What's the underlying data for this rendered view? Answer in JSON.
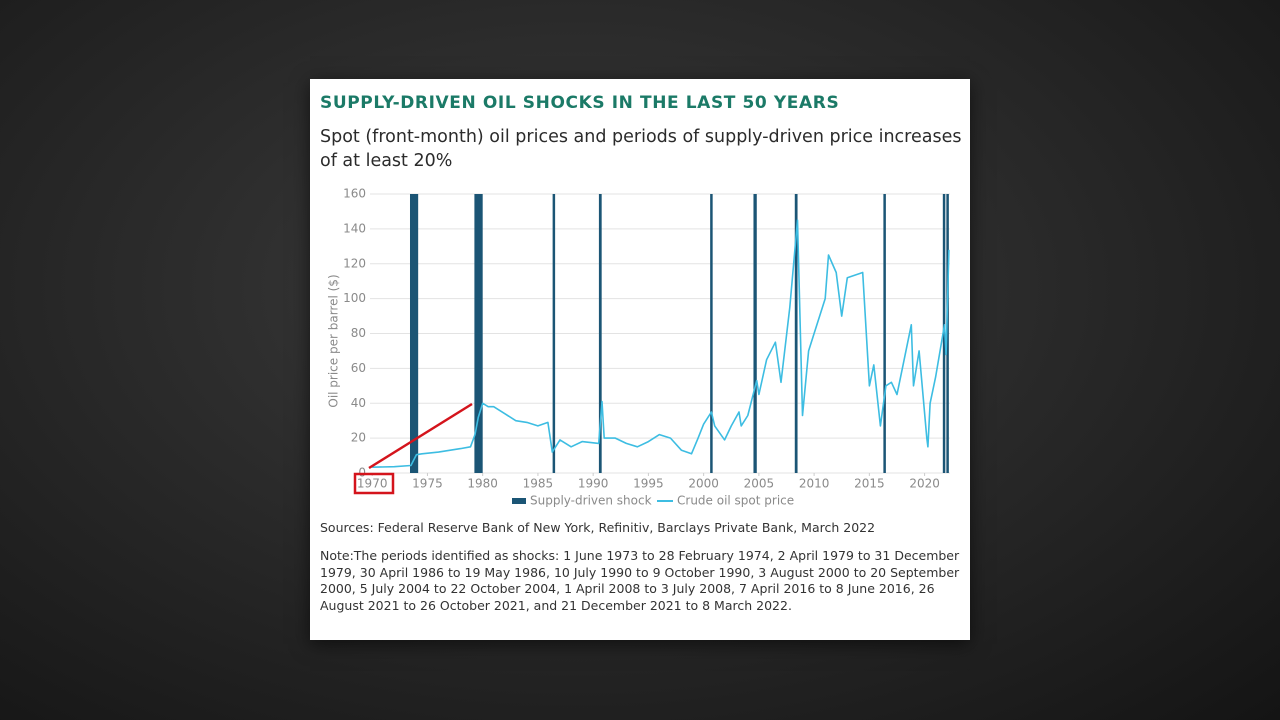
{
  "chart_data": {
    "type": "line",
    "title": "SUPPLY-DRIVEN OIL SHOCKS IN THE LAST 50 YEARS",
    "subtitle": "Spot (front-month) oil prices and periods of supply-driven price increases of at least 20%",
    "y_label": "Oil price per barrel ($)",
    "xlim": [
      1969.8,
      2022.3
    ],
    "xticks": [
      1970,
      1975,
      1980,
      1985,
      1990,
      1995,
      2000,
      2005,
      2010,
      2015,
      2020
    ],
    "ylim": [
      0,
      160
    ],
    "yticks": [
      0,
      20,
      40,
      60,
      80,
      100,
      120,
      140,
      160
    ],
    "grid": true,
    "legend": "bottom",
    "shocks": {
      "name": "Supply-driven shock",
      "color": "#1b5575",
      "periods": [
        [
          1973.42,
          1974.16
        ],
        [
          1979.25,
          1980.0
        ],
        [
          1986.33,
          1986.38
        ],
        [
          1990.52,
          1990.77
        ],
        [
          2000.59,
          2000.72
        ],
        [
          2004.51,
          2004.81
        ],
        [
          2008.25,
          2008.5
        ],
        [
          2016.27,
          2016.44
        ],
        [
          2021.65,
          2021.82
        ],
        [
          2021.97,
          2022.18
        ]
      ]
    },
    "series": [
      {
        "name": "Crude oil spot price",
        "color": "#3dbde2",
        "x": [
          1970,
          1972,
          1973.5,
          1974.0,
          1974.5,
          1976,
          1978,
          1978.9,
          1979.3,
          1979.6,
          1980.0,
          1980.5,
          1981,
          1982,
          1983,
          1984,
          1985,
          1985.9,
          1986.3,
          1986.6,
          1987,
          1988,
          1989,
          1990.5,
          1990.8,
          1991,
          1992,
          1993,
          1994,
          1995,
          1996,
          1997,
          1998,
          1998.9,
          1999.5,
          2000,
          2000.7,
          2001,
          2001.9,
          2002.5,
          2003.2,
          2003.4,
          2004,
          2004.8,
          2005,
          2005.7,
          2006.5,
          2007,
          2007.8,
          2008.5,
          2008.95,
          2009.5,
          2010,
          2011,
          2011.3,
          2012,
          2012.5,
          2013,
          2014.4,
          2015,
          2015.4,
          2016.0,
          2016.5,
          2017,
          2017.5,
          2018.8,
          2019,
          2019.5,
          2020.2,
          2020.3,
          2020.5,
          2021,
          2021.8,
          2021.95,
          2022.2
        ],
        "values": [
          3.3,
          3.6,
          4.3,
          10.5,
          11,
          12,
          14,
          15,
          22,
          32,
          40,
          38,
          38,
          34,
          30,
          29,
          27,
          29,
          12,
          15,
          19,
          15,
          18,
          17,
          41,
          20,
          20,
          17,
          15,
          18,
          22,
          20,
          13,
          11,
          20,
          28,
          35,
          27,
          19,
          27,
          35,
          27,
          33,
          53,
          45,
          65,
          75,
          52,
          95,
          145,
          33,
          70,
          80,
          100,
          125,
          115,
          90,
          112,
          115,
          50,
          62,
          27,
          50,
          52,
          45,
          85,
          50,
          70,
          20,
          15,
          40,
          55,
          85,
          68,
          128
        ]
      }
    ],
    "sources": "Sources: Federal Reserve Bank of New York, Refinitiv, Barclays Private Bank, March 2022",
    "note": "Note:The periods identified as shocks: 1 June 1973 to 28 February 1974, 2 April 1979 to 31 December 1979, 30 April 1986 to 19 May 1986, 10 July 1990 to 9 October 1990, 3 August 2000 to 20 September 2000, 5 July 2004 to 22 October 2004, 1 April 2008 to 3 July 2008, 7 April 2016 to 8 June 2016, 26 August 2021 to 26 October 2021, and 21 December 2021 to 8 March 2022."
  }
}
